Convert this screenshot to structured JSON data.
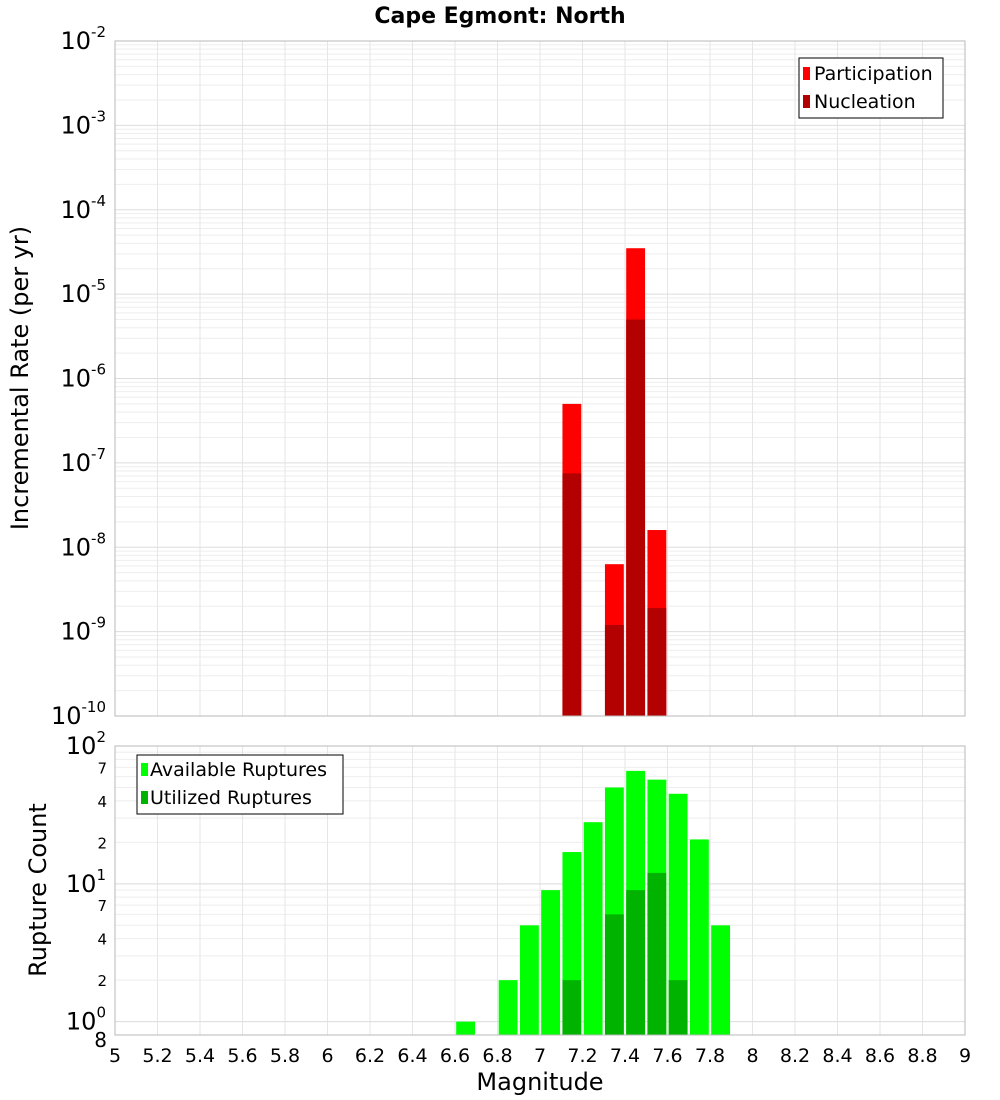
{
  "chart_data": [
    {
      "type": "bar",
      "title": "Cape Egmont: North",
      "xlabel": "",
      "ylabel": "Incremental Rate (per yr)",
      "yscale": "log",
      "ylim": [
        1e-10,
        0.01
      ],
      "xlim": [
        5,
        9
      ],
      "bar_width": 0.1,
      "grid": true,
      "legend_position": "top-right",
      "series": [
        {
          "name": "Participation",
          "color": "#ff0000",
          "points": [
            {
              "x": 7.15,
              "y": 5e-07
            },
            {
              "x": 7.35,
              "y": 6.3e-09
            },
            {
              "x": 7.45,
              "y": 3.5e-05
            },
            {
              "x": 7.55,
              "y": 1.6e-08
            }
          ]
        },
        {
          "name": "Nucleation",
          "color": "#b30000",
          "points": [
            {
              "x": 7.15,
              "y": 7.5e-08
            },
            {
              "x": 7.35,
              "y": 1.2e-09
            },
            {
              "x": 7.45,
              "y": 5e-06
            },
            {
              "x": 7.55,
              "y": 1.9e-09
            }
          ]
        }
      ]
    },
    {
      "type": "bar",
      "title": "",
      "xlabel": "Magnitude",
      "ylabel": "Rupture Count",
      "yscale": "log",
      "ylim": [
        0.8,
        100
      ],
      "xlim": [
        5,
        9
      ],
      "bar_width": 0.1,
      "grid": true,
      "legend_position": "top-left",
      "x_ticks": [
        "5",
        "5.2",
        "5.4",
        "5.6",
        "5.8",
        "6",
        "6.2",
        "6.4",
        "6.6",
        "6.8",
        "7",
        "7.2",
        "7.4",
        "7.6",
        "7.8",
        "8",
        "8.2",
        "8.4",
        "8.6",
        "8.8",
        "9"
      ],
      "series": [
        {
          "name": "Available Ruptures",
          "color": "#00ff00",
          "points": [
            {
              "x": 6.65,
              "y": 1
            },
            {
              "x": 6.85,
              "y": 2
            },
            {
              "x": 6.95,
              "y": 5
            },
            {
              "x": 7.05,
              "y": 9
            },
            {
              "x": 7.15,
              "y": 17
            },
            {
              "x": 7.25,
              "y": 28
            },
            {
              "x": 7.35,
              "y": 50
            },
            {
              "x": 7.45,
              "y": 66
            },
            {
              "x": 7.55,
              "y": 57
            },
            {
              "x": 7.65,
              "y": 45
            },
            {
              "x": 7.75,
              "y": 21
            },
            {
              "x": 7.85,
              "y": 5
            }
          ]
        },
        {
          "name": "Utilized Ruptures",
          "color": "#00b300",
          "points": [
            {
              "x": 7.15,
              "y": 2
            },
            {
              "x": 7.35,
              "y": 6
            },
            {
              "x": 7.45,
              "y": 9
            },
            {
              "x": 7.55,
              "y": 12
            },
            {
              "x": 7.65,
              "y": 2
            }
          ]
        }
      ]
    }
  ]
}
